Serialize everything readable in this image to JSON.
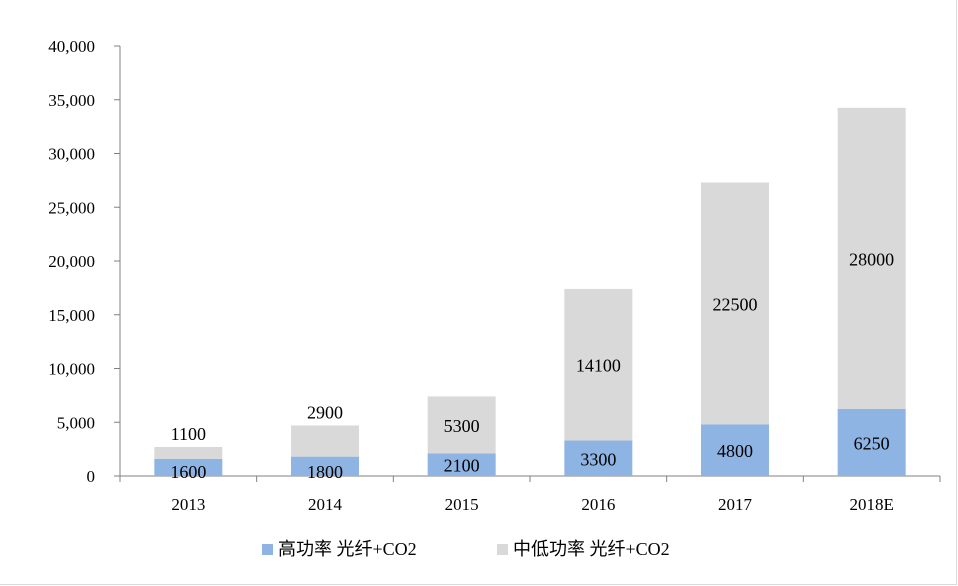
{
  "chart_data": {
    "type": "bar",
    "stacked": true,
    "categories": [
      "2013",
      "2014",
      "2015",
      "2016",
      "2017",
      "2018E"
    ],
    "series": [
      {
        "name": "高功率 光纤+CO2",
        "values": [
          1600,
          1800,
          2100,
          3300,
          4800,
          6250
        ],
        "color": "#8eb4e3"
      },
      {
        "name": "中低功率 光纤+CO2",
        "values": [
          1100,
          2900,
          5300,
          14100,
          22500,
          28000
        ],
        "color": "#d9d9d9"
      }
    ],
    "ylim": [
      0,
      40000
    ],
    "yticks": [
      "0",
      "5,000",
      "10,000",
      "15,000",
      "20,000",
      "25,000",
      "30,000",
      "35,000",
      "40,000"
    ],
    "ytick_values": [
      0,
      5000,
      10000,
      15000,
      20000,
      25000,
      30000,
      35000,
      40000
    ],
    "legend_position": "bottom",
    "grid": false,
    "data_labels": true
  }
}
